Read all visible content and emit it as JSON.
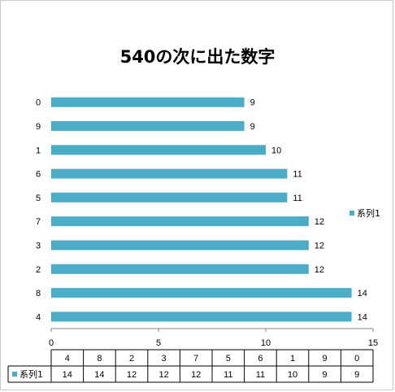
{
  "chart_data": {
    "type": "bar",
    "orientation": "horizontal",
    "title": "540の次に出た数字",
    "categories": [
      "4",
      "8",
      "2",
      "3",
      "7",
      "5",
      "6",
      "1",
      "9",
      "0"
    ],
    "series": [
      {
        "name": "系列1",
        "values": [
          14,
          14,
          12,
          12,
          12,
          11,
          11,
          10,
          9,
          9
        ]
      }
    ],
    "xlim": [
      0,
      15
    ],
    "x_ticks": [
      "0",
      "5",
      "10",
      "15"
    ],
    "gridlines": false,
    "legend_position": "right",
    "data_labels": true,
    "data_table": true,
    "colors": {
      "bar": "#4bacc6",
      "axis": "#868686",
      "frame": "#c8c8c8"
    }
  }
}
